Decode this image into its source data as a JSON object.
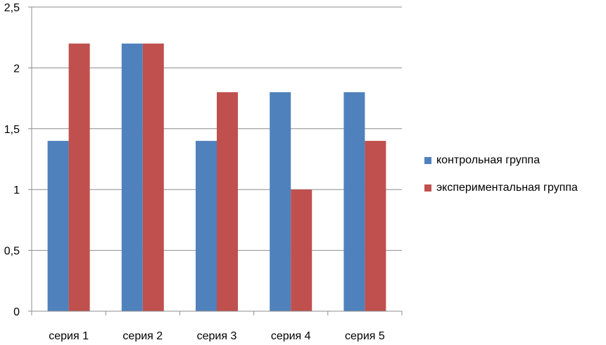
{
  "chart_data": {
    "type": "bar",
    "title": "",
    "xlabel": "",
    "ylabel": "",
    "categories": [
      "серия 1",
      "серия 2",
      "серия 3",
      "серия 4",
      "серия 5"
    ],
    "series": [
      {
        "name": "контрольная группа",
        "color": "#4F81BD",
        "values": [
          1.4,
          2.2,
          1.4,
          1.8,
          1.8
        ]
      },
      {
        "name": "экспериментальная группа",
        "color": "#C0504D",
        "values": [
          2.2,
          2.2,
          1.8,
          1.0,
          1.4
        ]
      }
    ],
    "ylim": [
      0,
      2.5
    ],
    "yticks": [
      0,
      0.5,
      1,
      1.5,
      2,
      2.5
    ],
    "ytick_labels": [
      "0",
      "0,5",
      "1",
      "1,5",
      "2",
      "2,5"
    ],
    "grid": true,
    "legend_position": "right"
  }
}
